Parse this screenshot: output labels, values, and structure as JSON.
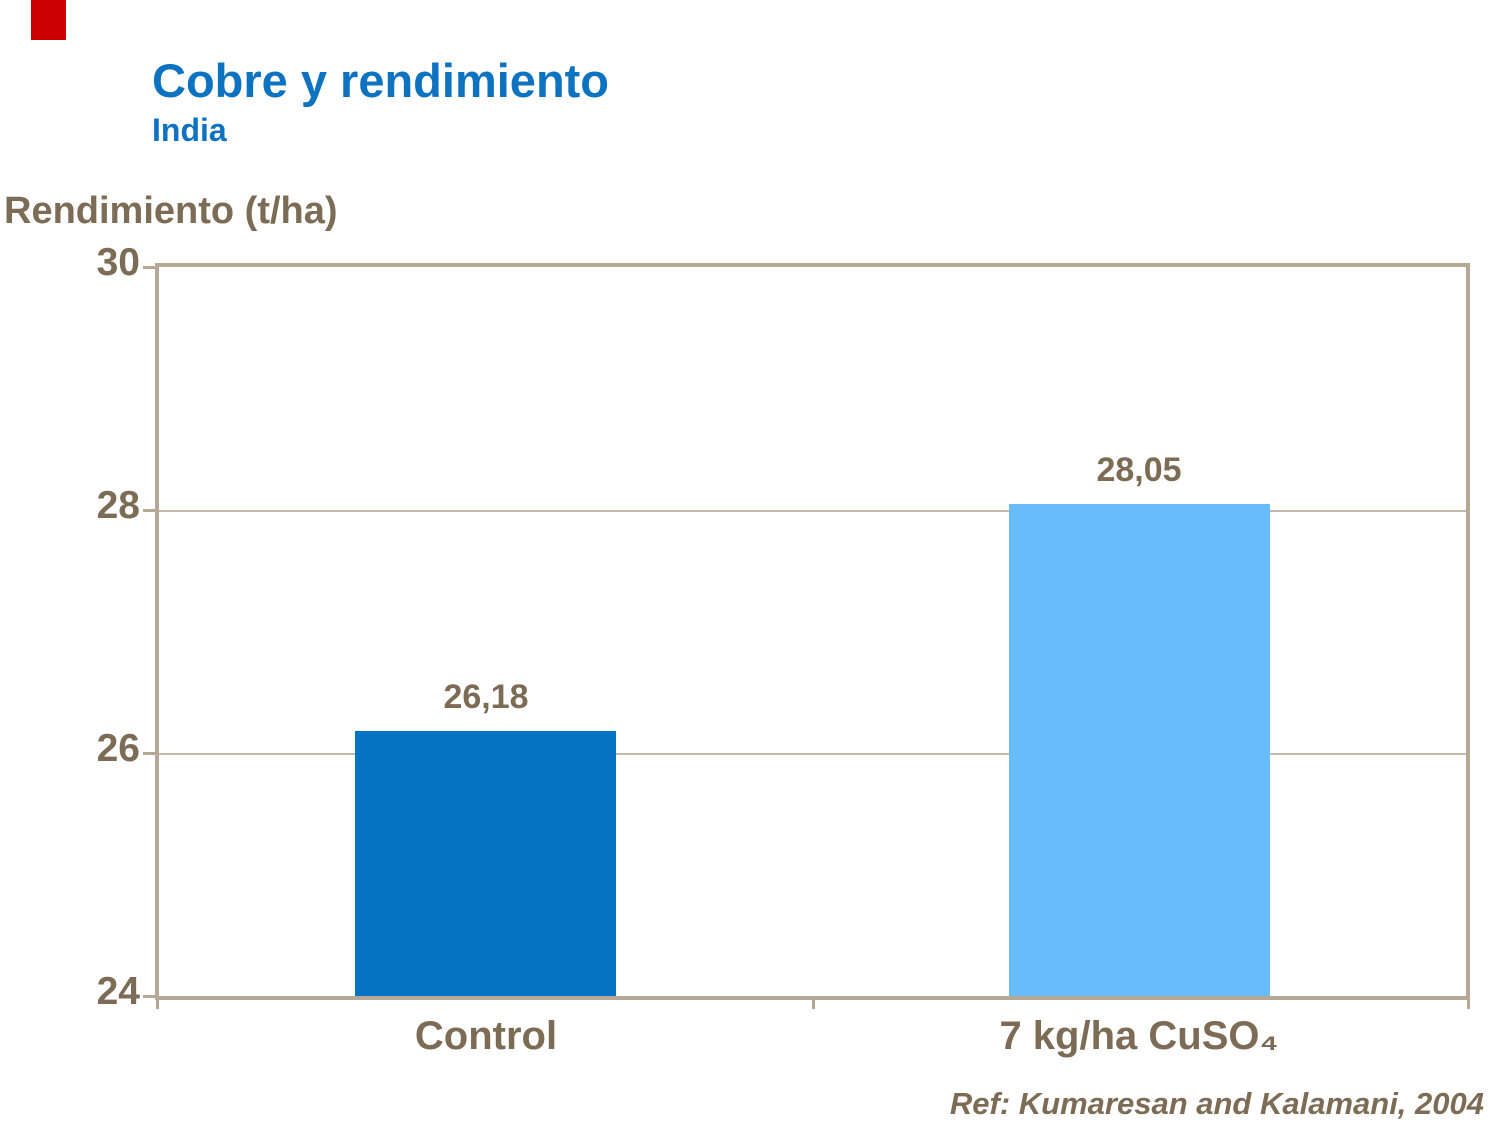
{
  "slide": {
    "title": "Cobre y rendimiento",
    "subtitle": "India",
    "reference": "Ref: Kumaresan  and Kalamani,  2004",
    "accent_color": "#cc0000",
    "title_color": "#0d73c1",
    "text_color": "#7d6c55"
  },
  "chart_data": {
    "type": "bar",
    "title": "Cobre y rendimiento — India",
    "ylabel": "Rendimiento (t/ha)",
    "xlabel": "",
    "categories": [
      "Control",
      "7 kg/ha CuSO₄"
    ],
    "values": [
      26.18,
      28.05
    ],
    "value_labels": [
      "26,18",
      "28,05"
    ],
    "bar_colors": [
      "#0473c2",
      "#68bcfa"
    ],
    "ylim": [
      24,
      30
    ],
    "yticks": [
      24,
      26,
      28,
      30
    ],
    "grid": "horizontal gridlines at interior ticks (26, 28)",
    "legend_position": "none",
    "axis_color": "#b6a897"
  }
}
